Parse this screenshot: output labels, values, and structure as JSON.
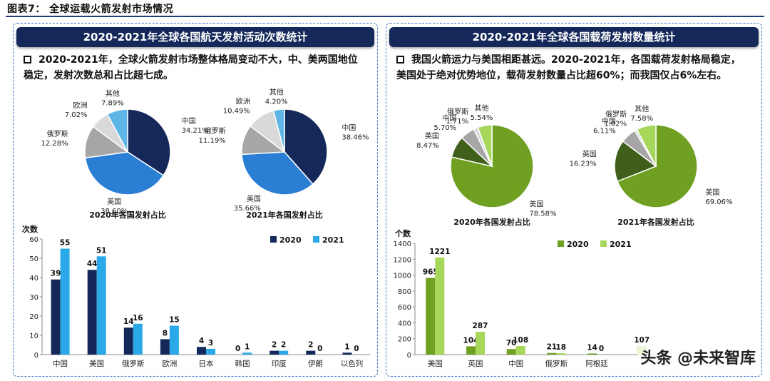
{
  "figure_title": "图表7： 全球运载火箭发射市场情况",
  "left_panel": {
    "header": "2020-2021年全球各国航天发射活动次数统计",
    "bullet": "2020-2021年，全球火箭发射市场整体格局变动不大，中、美两国地位稳定，发射次数总和占比超七成。"
  },
  "right_panel": {
    "header": "2020-2021年全球各国载荷发射数量统计",
    "bullet": "我国火箭运力与美国相距甚远。2020-2021年，各国载荷发射格局稳定，美国处于绝对优势地位，载荷发射数量占比超60%；而我国仅占6%左右。"
  },
  "watermark": "头条 @未来智库",
  "colors": {
    "navy": "#14285a",
    "blue": "#2a7fd4",
    "gray": "#a6a6a6",
    "lightgray": "#d9d9d9",
    "skyblue": "#5fb6e6",
    "bar2020_left": "#14285a",
    "bar2021_left": "#2aa8e8",
    "darkgreen": "#3f5f1a",
    "green": "#6fa021",
    "lightgreen": "#a6d65a"
  },
  "chart_data": [
    {
      "type": "pie",
      "title": "2020年各国发射占比",
      "slices": [
        {
          "label": "中国",
          "value": 34.21,
          "display": "34.21%",
          "color": "#14285a"
        },
        {
          "label": "美国",
          "value": 38.6,
          "display": "38.60%",
          "color": "#2a7fd4"
        },
        {
          "label": "俄罗斯",
          "value": 12.28,
          "display": "12.28%",
          "color": "#a6a6a6"
        },
        {
          "label": "欧洲",
          "value": 7.02,
          "display": "7.02%",
          "color": "#d9d9d9"
        },
        {
          "label": "其他",
          "value": 7.89,
          "display": "7.89%",
          "color": "#5fb6e6"
        }
      ]
    },
    {
      "type": "pie",
      "title": "2021年各国发射占比",
      "slices": [
        {
          "label": "中国",
          "value": 38.46,
          "display": "38.46%",
          "color": "#14285a"
        },
        {
          "label": "美国",
          "value": 35.66,
          "display": "35.66%",
          "color": "#2a7fd4"
        },
        {
          "label": "俄罗斯",
          "value": 11.19,
          "display": "11.19%",
          "color": "#a6a6a6"
        },
        {
          "label": "欧洲",
          "value": 10.49,
          "display": "10.49%",
          "color": "#d9d9d9"
        },
        {
          "label": "其他",
          "value": 4.2,
          "display": "4.20%",
          "color": "#5fb6e6"
        }
      ]
    },
    {
      "type": "bar",
      "ylabel": "次数",
      "ylim": [
        0,
        60
      ],
      "yticks": [
        0,
        10,
        20,
        30,
        40,
        50,
        60
      ],
      "categories": [
        "中国",
        "美国",
        "俄罗斯",
        "欧洲",
        "日本",
        "韩国",
        "印度",
        "伊朗",
        "以色列"
      ],
      "series": [
        {
          "name": "2020",
          "values": [
            39,
            44,
            14,
            8,
            4,
            0,
            2,
            2,
            1
          ],
          "color": "#14285a"
        },
        {
          "name": "2021",
          "values": [
            55,
            51,
            16,
            15,
            3,
            1,
            2,
            0,
            0
          ],
          "color": "#2aa8e8"
        }
      ],
      "legend": "top-right"
    },
    {
      "type": "pie",
      "title": "2020年各国发射占比",
      "slices": [
        {
          "label": "美国",
          "value": 78.58,
          "display": "78.58%",
          "color": "#6fa021"
        },
        {
          "label": "英国",
          "value": 8.47,
          "display": "8.47%",
          "color": "#3f5f1a"
        },
        {
          "label": "中国",
          "value": 5.7,
          "display": "5.70%",
          "color": "#a6a6a6"
        },
        {
          "label": "俄罗斯",
          "value": 1.71,
          "display": "1.71%",
          "color": "#d9d9d9"
        },
        {
          "label": "其他",
          "value": 5.54,
          "display": "5.54%",
          "color": "#a6d65a"
        }
      ]
    },
    {
      "type": "pie",
      "title": "2021年各国发射占比",
      "slices": [
        {
          "label": "美国",
          "value": 69.06,
          "display": "69.06%",
          "color": "#6fa021"
        },
        {
          "label": "英国",
          "value": 16.23,
          "display": "16.23%",
          "color": "#3f5f1a"
        },
        {
          "label": "中国",
          "value": 6.11,
          "display": "6.11%",
          "color": "#a6a6a6"
        },
        {
          "label": "俄罗斯",
          "value": 1.02,
          "display": "1.02%",
          "color": "#d9d9d9"
        },
        {
          "label": "其他",
          "value": 7.58,
          "display": "7.58%",
          "color": "#a6d65a"
        }
      ]
    },
    {
      "type": "bar",
      "ylabel": "个数",
      "ylim": [
        0,
        1400
      ],
      "yticks": [
        0,
        200,
        400,
        600,
        800,
        1000,
        1200,
        1400
      ],
      "categories": [
        "美国",
        "英国",
        "中国",
        "俄罗斯",
        "阿根廷",
        ""
      ],
      "series": [
        {
          "name": "2020",
          "values": [
            965,
            104,
            70,
            21,
            14,
            null
          ],
          "color": "#6fa021"
        },
        {
          "name": "2021",
          "values": [
            1221,
            287,
            108,
            18,
            0,
            107
          ],
          "color": "#a6d65a"
        }
      ],
      "legend": "top-right"
    }
  ]
}
